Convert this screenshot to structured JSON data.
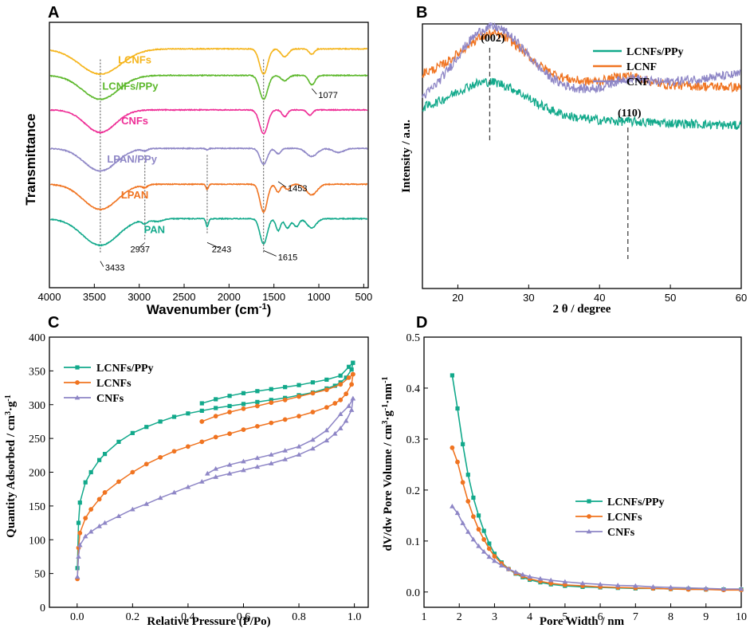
{
  "panels": {
    "A": {
      "letter": "A"
    },
    "B": {
      "letter": "B"
    },
    "C": {
      "letter": "C"
    },
    "D": {
      "letter": "D"
    }
  },
  "chart_data": [
    {
      "id": "A",
      "type": "line",
      "title": "",
      "xlabel": "Wavenumber (cm",
      "xlabel_sup": "-1",
      "xlabel_close": ")",
      "ylabel": "Transmittance",
      "xlim": [
        4000,
        450
      ],
      "x_ticks": [
        4000,
        3500,
        3000,
        2500,
        2000,
        1500,
        1000,
        500
      ],
      "series": [
        {
          "name": "LCNFs",
          "color": "#F5B41A",
          "offset": 0.1,
          "label_wn": 3050
        },
        {
          "name": "LCNFs/PPy",
          "color": "#5DB82C",
          "offset": 0.2,
          "label_wn": 3100
        },
        {
          "name": "CNFs",
          "color": "#EE2E96",
          "offset": 0.33,
          "label_wn": 3050
        },
        {
          "name": "LPAN/PPy",
          "color": "#8E86C6",
          "offset": 0.475,
          "label_wn": 3080
        },
        {
          "name": "LPAN",
          "color": "#F07421",
          "offset": 0.61,
          "label_wn": 3050
        },
        {
          "name": "PAN",
          "color": "#12A98B",
          "offset": 0.74,
          "label_wn": 2830
        }
      ],
      "annotations": [
        {
          "text": "3433",
          "wn": 3433
        },
        {
          "text": "2937",
          "wn": 2937
        },
        {
          "text": "2243",
          "wn": 2243
        },
        {
          "text": "1615",
          "wn": 1615
        },
        {
          "text": "1453",
          "wn": 1453
        },
        {
          "text": "1077",
          "wn": 1077
        }
      ],
      "reference_lines_wn": [
        3433,
        2937,
        2243,
        1615
      ]
    },
    {
      "id": "B",
      "type": "line",
      "title": "",
      "xlabel": "2 θ / degree",
      "ylabel": "Intensity / a.u.",
      "xlim": [
        15,
        60
      ],
      "x_ticks": [
        20,
        30,
        40,
        50,
        60
      ],
      "series": [
        {
          "name": "LCNFs/PPy",
          "color": "#12A98B",
          "offset": 0.0
        },
        {
          "name": "LCNF",
          "color": "#F07421",
          "offset": 0.22
        },
        {
          "name": "CNF",
          "color": "#8E86C6",
          "offset": 0.46
        }
      ],
      "peaks": [
        {
          "text": "(002)",
          "x": 24.5
        },
        {
          "text": "(110)",
          "x": 44
        }
      ],
      "legend_position": "top-right"
    },
    {
      "id": "C",
      "type": "line",
      "title": "",
      "xlabel": "Relative Pressure (P/Po)",
      "ylabel": "Quantity Adsorbed / cm",
      "ylabel_sup1": "3",
      "ylabel_mid": "·g",
      "ylabel_sup2": "-1",
      "xlim": [
        -0.1,
        1.05
      ],
      "ylim": [
        0,
        400
      ],
      "x_ticks": [
        0.0,
        0.2,
        0.4,
        0.6,
        0.8,
        1.0
      ],
      "x_tick_labels": [
        "0.0",
        "0.2",
        "0.4",
        "0.6",
        "0.8",
        "1.0"
      ],
      "y_ticks": [
        0,
        50,
        100,
        150,
        200,
        250,
        300,
        350,
        400
      ],
      "series": [
        {
          "name": "LCNFs/PPy",
          "color": "#12A98B",
          "marker": "square",
          "adsorption": [
            [
              0.001,
              58
            ],
            [
              0.005,
              125
            ],
            [
              0.01,
              155
            ],
            [
              0.03,
              185
            ],
            [
              0.05,
              200
            ],
            [
              0.08,
              218
            ],
            [
              0.1,
              227
            ],
            [
              0.15,
              245
            ],
            [
              0.2,
              258
            ],
            [
              0.25,
              267
            ],
            [
              0.3,
              275
            ],
            [
              0.35,
              282
            ],
            [
              0.4,
              287
            ],
            [
              0.45,
              291
            ],
            [
              0.5,
              295
            ],
            [
              0.55,
              298
            ],
            [
              0.6,
              301
            ],
            [
              0.65,
              304
            ],
            [
              0.7,
              307
            ],
            [
              0.75,
              310
            ],
            [
              0.8,
              314
            ],
            [
              0.85,
              318
            ],
            [
              0.9,
              324
            ],
            [
              0.93,
              328
            ],
            [
              0.95,
              333
            ],
            [
              0.97,
              340
            ],
            [
              0.99,
              352
            ],
            [
              0.995,
              362
            ]
          ],
          "desorption": [
            [
              0.995,
              362
            ],
            [
              0.98,
              356
            ],
            [
              0.95,
              343
            ],
            [
              0.9,
              337
            ],
            [
              0.85,
              333
            ],
            [
              0.8,
              329
            ],
            [
              0.75,
              326
            ],
            [
              0.7,
              323
            ],
            [
              0.65,
              320
            ],
            [
              0.6,
              317
            ],
            [
              0.55,
              313
            ],
            [
              0.5,
              308
            ],
            [
              0.45,
              302
            ]
          ]
        },
        {
          "name": "LCNFs",
          "color": "#F07421",
          "marker": "circle",
          "adsorption": [
            [
              0.001,
              42
            ],
            [
              0.005,
              88
            ],
            [
              0.01,
              110
            ],
            [
              0.03,
              132
            ],
            [
              0.05,
              145
            ],
            [
              0.08,
              160
            ],
            [
              0.1,
              170
            ],
            [
              0.15,
              186
            ],
            [
              0.2,
              200
            ],
            [
              0.25,
              212
            ],
            [
              0.3,
              222
            ],
            [
              0.35,
              231
            ],
            [
              0.4,
              238
            ],
            [
              0.45,
              245
            ],
            [
              0.5,
              252
            ],
            [
              0.55,
              257
            ],
            [
              0.6,
              263
            ],
            [
              0.65,
              268
            ],
            [
              0.7,
              273
            ],
            [
              0.75,
              278
            ],
            [
              0.8,
              283
            ],
            [
              0.85,
              289
            ],
            [
              0.9,
              296
            ],
            [
              0.93,
              302
            ],
            [
              0.95,
              307
            ],
            [
              0.97,
              316
            ],
            [
              0.99,
              330
            ],
            [
              0.995,
              345
            ]
          ],
          "desorption": [
            [
              0.995,
              345
            ],
            [
              0.98,
              340
            ],
            [
              0.95,
              330
            ],
            [
              0.9,
              322
            ],
            [
              0.85,
              317
            ],
            [
              0.8,
              312
            ],
            [
              0.75,
              307
            ],
            [
              0.7,
              303
            ],
            [
              0.65,
              298
            ],
            [
              0.6,
              294
            ],
            [
              0.55,
              289
            ],
            [
              0.5,
              283
            ],
            [
              0.45,
              275
            ]
          ]
        },
        {
          "name": "CNFs",
          "color": "#8E86C6",
          "marker": "triangle",
          "adsorption": [
            [
              0.001,
              45
            ],
            [
              0.005,
              75
            ],
            [
              0.01,
              92
            ],
            [
              0.03,
              105
            ],
            [
              0.05,
              112
            ],
            [
              0.08,
              120
            ],
            [
              0.1,
              125
            ],
            [
              0.15,
              135
            ],
            [
              0.2,
              145
            ],
            [
              0.25,
              153
            ],
            [
              0.3,
              162
            ],
            [
              0.35,
              170
            ],
            [
              0.4,
              178
            ],
            [
              0.45,
              186
            ],
            [
              0.5,
              193
            ],
            [
              0.55,
              198
            ],
            [
              0.6,
              203
            ],
            [
              0.65,
              208
            ],
            [
              0.7,
              213
            ],
            [
              0.75,
              219
            ],
            [
              0.8,
              226
            ],
            [
              0.85,
              235
            ],
            [
              0.9,
              247
            ],
            [
              0.93,
              257
            ],
            [
              0.95,
              265
            ],
            [
              0.97,
              276
            ],
            [
              0.99,
              292
            ],
            [
              0.995,
              309
            ]
          ],
          "desorption": [
            [
              0.995,
              309
            ],
            [
              0.98,
              298
            ],
            [
              0.95,
              286
            ],
            [
              0.9,
              262
            ],
            [
              0.85,
              248
            ],
            [
              0.8,
              238
            ],
            [
              0.75,
              232
            ],
            [
              0.7,
              226
            ],
            [
              0.65,
              221
            ],
            [
              0.6,
              216
            ],
            [
              0.55,
              211
            ],
            [
              0.5,
              205
            ],
            [
              0.47,
              198
            ]
          ]
        }
      ],
      "legend_position": "top-left"
    },
    {
      "id": "D",
      "type": "line",
      "title": "",
      "xlabel": "Pore Width / nm",
      "ylabel": "dV/dw Pore Volume / cm",
      "ylabel_sup1": "3",
      "ylabel_mid": "·g",
      "ylabel_sup2": "-1",
      "ylabel_mid2": "·nm",
      "ylabel_sup3": "-1",
      "xlim": [
        1,
        10
      ],
      "ylim": [
        -0.03,
        0.5
      ],
      "x_ticks": [
        1,
        2,
        3,
        4,
        5,
        6,
        7,
        8,
        9,
        10
      ],
      "y_ticks": [
        0.0,
        0.1,
        0.2,
        0.3,
        0.4,
        0.5
      ],
      "y_tick_labels": [
        "0.0",
        "0.1",
        "0.2",
        "0.3",
        "0.4",
        "0.5"
      ],
      "series": [
        {
          "name": "LCNFs/PPy",
          "color": "#12A98B",
          "marker": "square",
          "points": [
            [
              1.8,
              0.425
            ],
            [
              1.95,
              0.36
            ],
            [
              2.1,
              0.29
            ],
            [
              2.25,
              0.23
            ],
            [
              2.4,
              0.185
            ],
            [
              2.55,
              0.15
            ],
            [
              2.7,
              0.12
            ],
            [
              2.85,
              0.095
            ],
            [
              3.0,
              0.075
            ],
            [
              3.2,
              0.058
            ],
            [
              3.4,
              0.045
            ],
            [
              3.6,
              0.036
            ],
            [
              3.8,
              0.029
            ],
            [
              4.0,
              0.024
            ],
            [
              4.3,
              0.019
            ],
            [
              4.6,
              0.015
            ],
            [
              5.0,
              0.012
            ],
            [
              5.5,
              0.01
            ],
            [
              6.0,
              0.009
            ],
            [
              6.5,
              0.008
            ],
            [
              7.0,
              0.007
            ],
            [
              7.5,
              0.007
            ],
            [
              8.0,
              0.006
            ],
            [
              8.5,
              0.006
            ],
            [
              9.0,
              0.005
            ],
            [
              9.5,
              0.005
            ],
            [
              10.0,
              0.005
            ]
          ]
        },
        {
          "name": "LCNFs",
          "color": "#F07421",
          "marker": "circle",
          "points": [
            [
              1.8,
              0.283
            ],
            [
              1.95,
              0.255
            ],
            [
              2.1,
              0.215
            ],
            [
              2.25,
              0.178
            ],
            [
              2.4,
              0.148
            ],
            [
              2.55,
              0.123
            ],
            [
              2.7,
              0.103
            ],
            [
              2.85,
              0.085
            ],
            [
              3.0,
              0.07
            ],
            [
              3.2,
              0.056
            ],
            [
              3.4,
              0.045
            ],
            [
              3.6,
              0.037
            ],
            [
              3.8,
              0.031
            ],
            [
              4.0,
              0.026
            ],
            [
              4.3,
              0.021
            ],
            [
              4.6,
              0.017
            ],
            [
              5.0,
              0.014
            ],
            [
              5.5,
              0.012
            ],
            [
              6.0,
              0.01
            ],
            [
              6.5,
              0.009
            ],
            [
              7.0,
              0.008
            ],
            [
              7.5,
              0.007
            ],
            [
              8.0,
              0.006
            ],
            [
              8.5,
              0.005
            ],
            [
              9.0,
              0.005
            ],
            [
              9.5,
              0.004
            ],
            [
              10.0,
              0.004
            ]
          ]
        },
        {
          "name": "CNFs",
          "color": "#8E86C6",
          "marker": "triangle",
          "points": [
            [
              1.8,
              0.168
            ],
            [
              1.95,
              0.155
            ],
            [
              2.1,
              0.135
            ],
            [
              2.25,
              0.118
            ],
            [
              2.4,
              0.103
            ],
            [
              2.55,
              0.09
            ],
            [
              2.7,
              0.079
            ],
            [
              2.85,
              0.069
            ],
            [
              3.0,
              0.061
            ],
            [
              3.2,
              0.052
            ],
            [
              3.4,
              0.045
            ],
            [
              3.6,
              0.039
            ],
            [
              3.8,
              0.034
            ],
            [
              4.0,
              0.03
            ],
            [
              4.3,
              0.026
            ],
            [
              4.6,
              0.023
            ],
            [
              5.0,
              0.02
            ],
            [
              5.5,
              0.017
            ],
            [
              6.0,
              0.015
            ],
            [
              6.5,
              0.013
            ],
            [
              7.0,
              0.012
            ],
            [
              7.5,
              0.01
            ],
            [
              8.0,
              0.009
            ],
            [
              8.5,
              0.008
            ],
            [
              9.0,
              0.007
            ],
            [
              9.5,
              0.006
            ],
            [
              10.0,
              0.006
            ]
          ]
        }
      ],
      "legend_position": "center-right"
    }
  ]
}
